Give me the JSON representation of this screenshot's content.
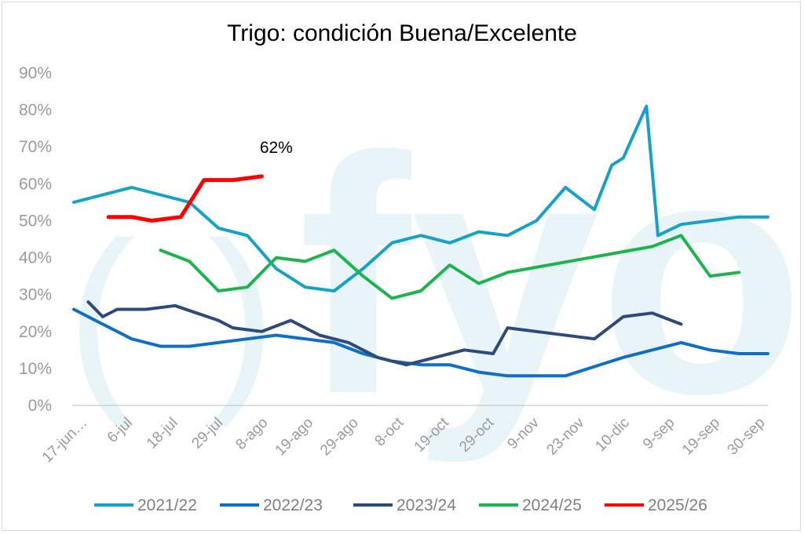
{
  "chart_data": {
    "type": "line",
    "title": "Trigo: condición Buena/Excelente",
    "yticks": [
      "0%",
      "10%",
      "20%",
      "30%",
      "40%",
      "50%",
      "60%",
      "70%",
      "80%",
      "90%"
    ],
    "ylim": [
      0,
      90
    ],
    "x_ticks": [
      "17-jun…",
      "6-jul",
      "18-jul",
      "29-jul",
      "8-ago",
      "19-ago",
      "29-ago",
      "8-oct",
      "19-oct",
      "29-oct",
      "9-nov",
      "23-nov",
      "10-dic",
      "9-sep",
      "19-sep",
      "30-sep"
    ],
    "grid": false,
    "legend_position": "bottom",
    "watermark": "fyo",
    "annotation": {
      "text": "62%",
      "series": "2025/26",
      "x": 7,
      "y": 62
    },
    "series": [
      {
        "name": "2021/22",
        "color": "#16a2c8",
        "points": [
          [
            0,
            55
          ],
          [
            1,
            57
          ],
          [
            2,
            59
          ],
          [
            3,
            57
          ],
          [
            4,
            55
          ],
          [
            5,
            48
          ],
          [
            6,
            46
          ],
          [
            7,
            37
          ],
          [
            8,
            32
          ],
          [
            9,
            31
          ],
          [
            10,
            37
          ],
          [
            11,
            44
          ],
          [
            12,
            46
          ],
          [
            13,
            44
          ],
          [
            14,
            47
          ],
          [
            15,
            46
          ],
          [
            16,
            50
          ],
          [
            17,
            59
          ],
          [
            18,
            53
          ],
          [
            18.6,
            65
          ],
          [
            19,
            67
          ],
          [
            19.8,
            81
          ],
          [
            20.2,
            46
          ],
          [
            21,
            49
          ],
          [
            23,
            51
          ],
          [
            24,
            51
          ]
        ]
      },
      {
        "name": "2022/23",
        "color": "#0f6fc6",
        "points": [
          [
            0,
            26
          ],
          [
            1,
            22
          ],
          [
            2,
            18
          ],
          [
            3,
            16
          ],
          [
            4,
            16
          ],
          [
            5,
            17
          ],
          [
            6,
            18
          ],
          [
            7,
            19
          ],
          [
            8,
            18
          ],
          [
            9,
            17
          ],
          [
            10,
            14
          ],
          [
            11,
            12
          ],
          [
            12,
            11
          ],
          [
            13,
            11
          ],
          [
            14,
            9
          ],
          [
            15,
            8
          ],
          [
            16,
            8
          ],
          [
            17,
            8
          ],
          [
            19,
            13
          ],
          [
            21,
            17
          ],
          [
            22,
            15
          ],
          [
            23,
            14
          ],
          [
            24,
            14
          ]
        ]
      },
      {
        "name": "2023/24",
        "color": "#2e4a7a",
        "points": [
          [
            0.5,
            28
          ],
          [
            1,
            24
          ],
          [
            1.5,
            26
          ],
          [
            2.5,
            26
          ],
          [
            3.5,
            27
          ],
          [
            5,
            23
          ],
          [
            5.5,
            21
          ],
          [
            6.5,
            20
          ],
          [
            7.5,
            23
          ],
          [
            8.5,
            19
          ],
          [
            9.5,
            17
          ],
          [
            10.5,
            13
          ],
          [
            11.5,
            11
          ],
          [
            12.5,
            13
          ],
          [
            13.5,
            15
          ],
          [
            14.5,
            14
          ],
          [
            15,
            21
          ],
          [
            16,
            20
          ],
          [
            18,
            18
          ],
          [
            19,
            24
          ],
          [
            20,
            25
          ],
          [
            21,
            22
          ]
        ]
      },
      {
        "name": "2024/25",
        "color": "#1db34f",
        "points": [
          [
            3,
            42
          ],
          [
            4,
            39
          ],
          [
            5,
            31
          ],
          [
            6,
            32
          ],
          [
            7,
            40
          ],
          [
            8,
            39
          ],
          [
            9,
            42
          ],
          [
            10,
            35
          ],
          [
            11,
            29
          ],
          [
            12,
            31
          ],
          [
            13,
            38
          ],
          [
            14,
            33
          ],
          [
            15,
            36
          ],
          [
            20,
            43
          ],
          [
            21,
            46
          ],
          [
            22,
            35
          ],
          [
            23,
            36
          ]
        ]
      },
      {
        "name": "2025/26",
        "color": "#ff0000",
        "points": [
          [
            1.2,
            51
          ],
          [
            2,
            51
          ],
          [
            2.7,
            50
          ],
          [
            3.7,
            51
          ],
          [
            4.5,
            61
          ],
          [
            5.5,
            61
          ],
          [
            6.5,
            62
          ]
        ]
      }
    ]
  }
}
